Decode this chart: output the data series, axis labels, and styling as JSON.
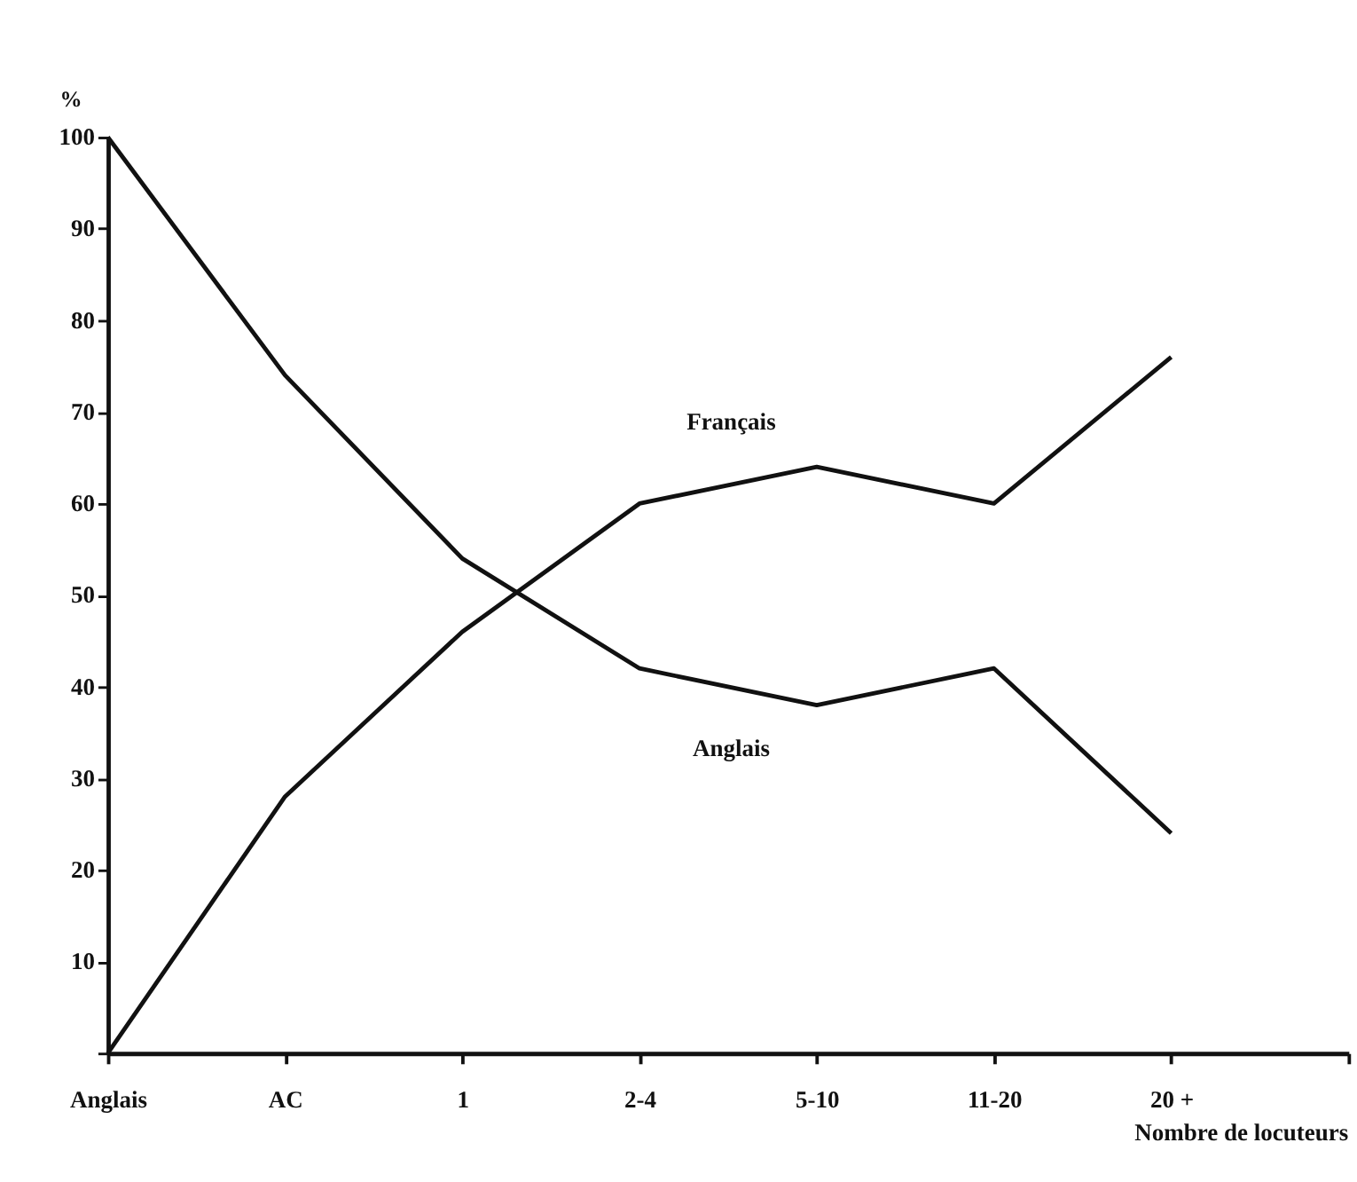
{
  "chart_data": {
    "type": "line",
    "ylabel": "%",
    "xlabel": "Nombre de locuteurs",
    "categories": [
      "Anglais",
      "AC",
      "1",
      "2-4",
      "5-10",
      "11-20",
      "20 +"
    ],
    "series": [
      {
        "name": "Anglais",
        "color": "#111111",
        "values": [
          100,
          74,
          54,
          42,
          38,
          42,
          24
        ]
      },
      {
        "name": "Français",
        "color": "#111111",
        "values": [
          0,
          28,
          46,
          60,
          64,
          60,
          76
        ]
      }
    ],
    "ylim": [
      0,
      100
    ],
    "yticks": [
      {
        "value": 0,
        "label": null
      },
      10,
      20,
      30,
      40,
      50,
      60,
      70,
      80,
      90,
      100
    ],
    "grid": false,
    "marker": "none",
    "line_style": "solid"
  }
}
